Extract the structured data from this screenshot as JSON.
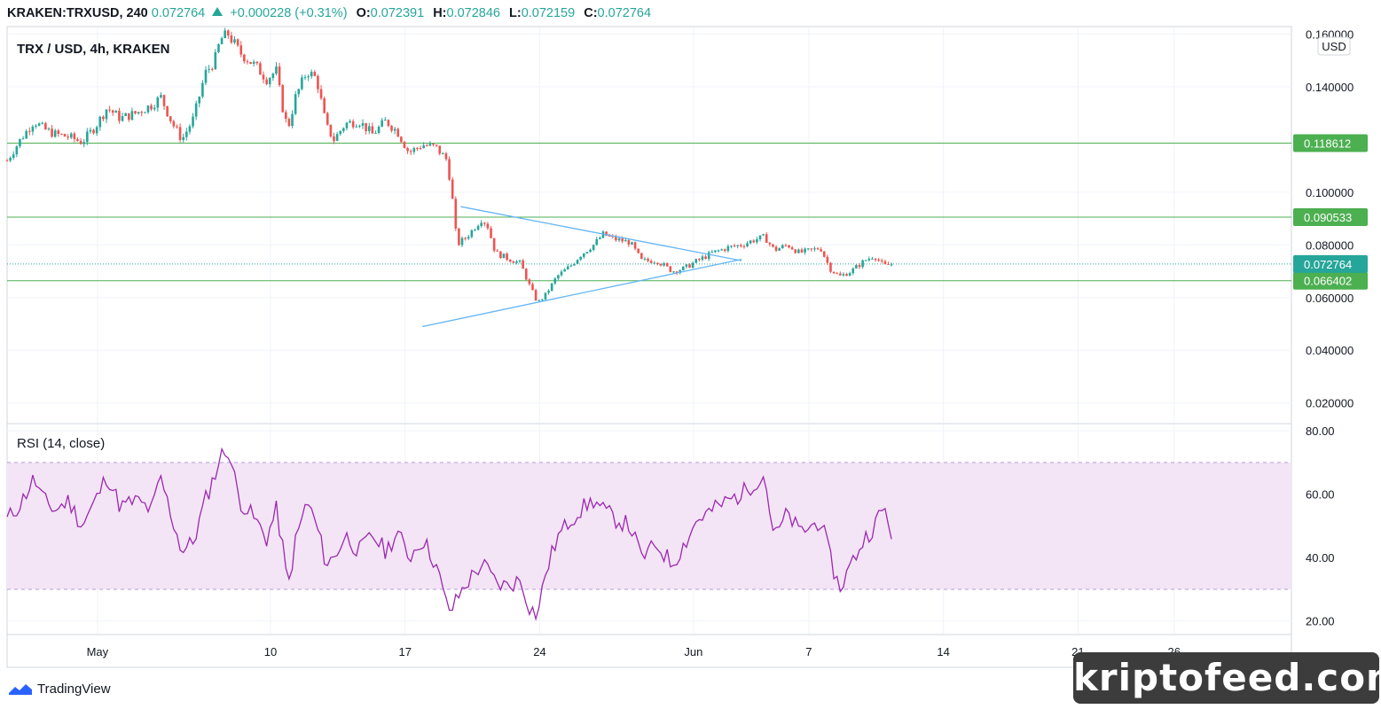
{
  "header": {
    "symbol": "KRAKEN:TRXUSD, 240",
    "last": "0.072764",
    "change": "+0.000228 (+0.31%)",
    "open_label": "O:",
    "open": "0.072391",
    "high_label": "H:",
    "high": "0.072846",
    "low_label": "L:",
    "low": "0.072159",
    "close_label": "C:",
    "close": "0.072764"
  },
  "chart_title": "TRX / USD, 4h, KRAKEN",
  "currency_badge": "USD",
  "branding": "TradingView",
  "watermark": "kriptofeed.com",
  "colors": {
    "up": "#26a69a",
    "down": "#ef5350",
    "level": "#4caf50",
    "trendline": "#64b5f6",
    "rsi_line": "#9c27b0",
    "rsi_band": "#f3e5f5",
    "price_tag": "#26a69a"
  },
  "chart_data": [
    {
      "type": "candlestick",
      "title": "TRX / USD, 4h, KRAKEN",
      "ylabel": "USD",
      "ylim": [
        0.0125,
        0.1625
      ],
      "y_ticks": [
        "0.160000",
        "0.140000",
        "0.100000",
        "0.080000",
        "0.060000",
        "0.040000",
        "0.020000"
      ],
      "y_tick_values": [
        0.16,
        0.14,
        0.1,
        0.08,
        0.06,
        0.04,
        0.02
      ],
      "x_ticks": [
        "May",
        "10",
        "17",
        "24",
        "Jun",
        "7",
        "14",
        "21",
        "26"
      ],
      "x_tick_days": [
        1,
        10,
        17,
        24,
        32,
        38,
        45,
        52,
        57
      ],
      "x_range_days": [
        -3.7,
        63.1
      ],
      "horizontal_levels": [
        {
          "value": 0.118612,
          "label": "0.118612"
        },
        {
          "value": 0.090533,
          "label": "0.090533"
        },
        {
          "value": 0.066402,
          "label": "0.066402"
        }
      ],
      "last_price": {
        "value": 0.072764,
        "label": "0.072764"
      },
      "trendlines": [
        {
          "from": [
            19.9,
            0.0945
          ],
          "to": [
            34.5,
            0.074
          ]
        },
        {
          "from": [
            17.9,
            0.049
          ],
          "to": [
            34.5,
            0.0745
          ]
        }
      ],
      "anchor_closes": [
        [
          -3.7,
          0.112
        ],
        [
          -3.0,
          0.12
        ],
        [
          -2.3,
          0.127
        ],
        [
          -1.8,
          0.124
        ],
        [
          -1.2,
          0.122
        ],
        [
          -0.5,
          0.121
        ],
        [
          0.2,
          0.119
        ],
        [
          0.9,
          0.125
        ],
        [
          1.5,
          0.132
        ],
        [
          2.2,
          0.128
        ],
        [
          3.0,
          0.13
        ],
        [
          3.8,
          0.133
        ],
        [
          4.3,
          0.136
        ],
        [
          4.9,
          0.126
        ],
        [
          5.4,
          0.12
        ],
        [
          6.0,
          0.128
        ],
        [
          6.6,
          0.145
        ],
        [
          7.1,
          0.15
        ],
        [
          7.4,
          0.158
        ],
        [
          7.8,
          0.16
        ],
        [
          8.4,
          0.153
        ],
        [
          9.2,
          0.148
        ],
        [
          9.8,
          0.143
        ],
        [
          10.3,
          0.146
        ],
        [
          10.6,
          0.133
        ],
        [
          10.9,
          0.124
        ],
        [
          11.3,
          0.136
        ],
        [
          11.9,
          0.146
        ],
        [
          12.4,
          0.143
        ],
        [
          12.9,
          0.125
        ],
        [
          13.3,
          0.12
        ],
        [
          13.9,
          0.126
        ],
        [
          14.6,
          0.127
        ],
        [
          15.3,
          0.122
        ],
        [
          16.0,
          0.127
        ],
        [
          16.6,
          0.123
        ],
        [
          17.2,
          0.115
        ],
        [
          17.9,
          0.118
        ],
        [
          18.6,
          0.117
        ],
        [
          19.2,
          0.112
        ],
        [
          19.5,
          0.095
        ],
        [
          19.7,
          0.08
        ],
        [
          20.2,
          0.083
        ],
        [
          21.0,
          0.09
        ],
        [
          21.3,
          0.087
        ],
        [
          21.7,
          0.077
        ],
        [
          22.3,
          0.075
        ],
        [
          23.0,
          0.073
        ],
        [
          23.5,
          0.064
        ],
        [
          23.9,
          0.058
        ],
        [
          24.3,
          0.061
        ],
        [
          24.9,
          0.068
        ],
        [
          25.6,
          0.072
        ],
        [
          26.1,
          0.076
        ],
        [
          26.8,
          0.08
        ],
        [
          27.3,
          0.084
        ],
        [
          28.0,
          0.082
        ],
        [
          28.7,
          0.081
        ],
        [
          29.3,
          0.074
        ],
        [
          30.1,
          0.074
        ],
        [
          30.9,
          0.07
        ],
        [
          31.5,
          0.071
        ],
        [
          32.2,
          0.074
        ],
        [
          33.0,
          0.077
        ],
        [
          33.8,
          0.079
        ],
        [
          34.5,
          0.08
        ],
        [
          35.2,
          0.082
        ],
        [
          35.7,
          0.083
        ],
        [
          36.2,
          0.078
        ],
        [
          36.9,
          0.08
        ],
        [
          37.5,
          0.077
        ],
        [
          38.2,
          0.078
        ],
        [
          38.6,
          0.079
        ],
        [
          39.1,
          0.071
        ],
        [
          39.6,
          0.068
        ],
        [
          40.2,
          0.07
        ],
        [
          40.9,
          0.074
        ],
        [
          41.4,
          0.076
        ],
        [
          41.9,
          0.072
        ],
        [
          42.4,
          0.0728
        ]
      ]
    },
    {
      "type": "line",
      "title": "RSI (14, close)",
      "ylim": [
        16,
        82
      ],
      "y_ticks": [
        "80.00",
        "60.00",
        "40.00",
        "20.00"
      ],
      "y_tick_values": [
        80,
        60,
        40,
        20
      ],
      "band": [
        30,
        70
      ],
      "anchor_values": [
        [
          -3.7,
          52
        ],
        [
          -3.0,
          57
        ],
        [
          -2.3,
          65
        ],
        [
          -1.8,
          58
        ],
        [
          -1.2,
          55
        ],
        [
          -0.5,
          58
        ],
        [
          0.2,
          50
        ],
        [
          0.9,
          58
        ],
        [
          1.5,
          66
        ],
        [
          2.2,
          56
        ],
        [
          3.0,
          58
        ],
        [
          3.8,
          55
        ],
        [
          4.3,
          65
        ],
        [
          4.9,
          52
        ],
        [
          5.4,
          42
        ],
        [
          6.0,
          45
        ],
        [
          6.6,
          58
        ],
        [
          7.1,
          66
        ],
        [
          7.4,
          72
        ],
        [
          7.8,
          74
        ],
        [
          8.4,
          58
        ],
        [
          9.2,
          52
        ],
        [
          9.8,
          46
        ],
        [
          10.3,
          55
        ],
        [
          10.6,
          45
        ],
        [
          10.9,
          30
        ],
        [
          11.3,
          45
        ],
        [
          11.9,
          58
        ],
        [
          12.4,
          50
        ],
        [
          12.9,
          38
        ],
        [
          13.3,
          40
        ],
        [
          13.9,
          47
        ],
        [
          14.6,
          42
        ],
        [
          15.3,
          47
        ],
        [
          16.0,
          42
        ],
        [
          16.6,
          48
        ],
        [
          17.2,
          40
        ],
        [
          17.9,
          46
        ],
        [
          18.6,
          38
        ],
        [
          19.2,
          24
        ],
        [
          19.5,
          24
        ],
        [
          19.7,
          27
        ],
        [
          20.2,
          32
        ],
        [
          21.0,
          38
        ],
        [
          21.3,
          36
        ],
        [
          21.7,
          32
        ],
        [
          22.3,
          31
        ],
        [
          23.0,
          33
        ],
        [
          23.5,
          24
        ],
        [
          23.9,
          22
        ],
        [
          24.3,
          35
        ],
        [
          24.9,
          46
        ],
        [
          25.6,
          52
        ],
        [
          26.1,
          55
        ],
        [
          26.8,
          58
        ],
        [
          27.3,
          55
        ],
        [
          28.0,
          52
        ],
        [
          28.7,
          50
        ],
        [
          29.3,
          40
        ],
        [
          30.1,
          44
        ],
        [
          30.9,
          38
        ],
        [
          31.5,
          44
        ],
        [
          32.2,
          52
        ],
        [
          33.0,
          55
        ],
        [
          33.8,
          58
        ],
        [
          34.5,
          60
        ],
        [
          35.2,
          64
        ],
        [
          35.7,
          66
        ],
        [
          36.2,
          46
        ],
        [
          36.9,
          54
        ],
        [
          37.5,
          48
        ],
        [
          38.2,
          50
        ],
        [
          38.6,
          52
        ],
        [
          39.1,
          40
        ],
        [
          39.6,
          30
        ],
        [
          40.2,
          38
        ],
        [
          40.9,
          46
        ],
        [
          41.4,
          50
        ],
        [
          41.9,
          56
        ],
        [
          42.4,
          46
        ]
      ]
    }
  ]
}
